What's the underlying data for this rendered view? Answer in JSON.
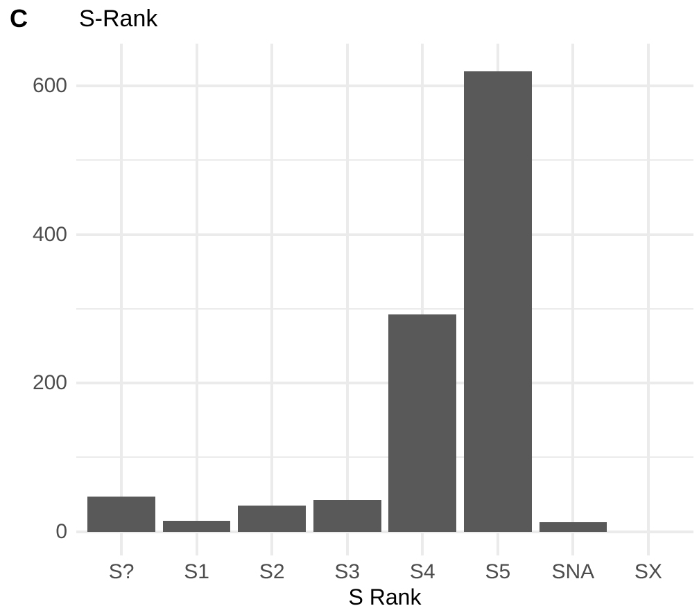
{
  "figure": {
    "tag": "C",
    "title": "S-Rank"
  },
  "chart_data": {
    "type": "bar",
    "title": "S-Rank",
    "categories": [
      "S?",
      "S1",
      "S2",
      "S3",
      "S4",
      "S5",
      "SNA",
      "SX"
    ],
    "values": [
      47,
      15,
      35,
      43,
      292,
      620,
      13,
      0
    ],
    "xlabel": "S Rank",
    "ylabel": "",
    "ylim": [
      -32,
      657
    ],
    "y_ticks": [
      0,
      200,
      400,
      600
    ],
    "y_minor": [
      100,
      300,
      500
    ],
    "grid": "major and minor horizontal, major vertical at category centers",
    "legend": false,
    "bar_color": "#595959",
    "grid_color": "#EBEBEB",
    "axis_text_color": "#4D4D4D",
    "title_color": "#000000",
    "background_color": "#FFFFFF"
  }
}
